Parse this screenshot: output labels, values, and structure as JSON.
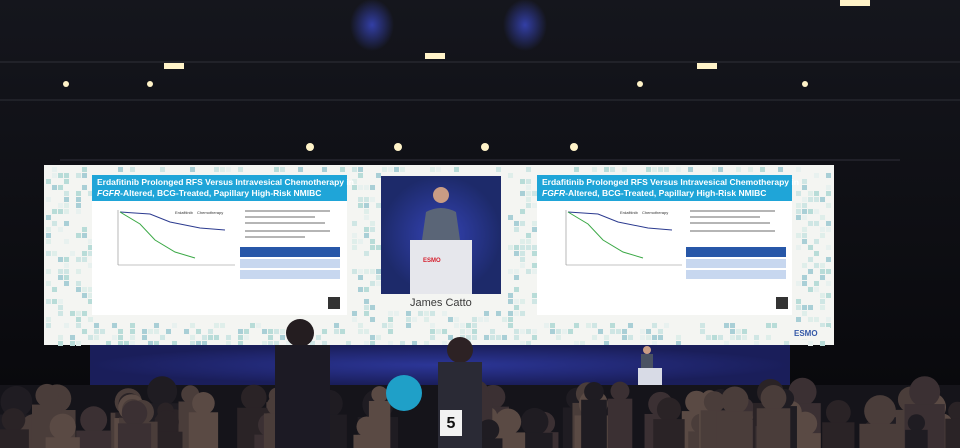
{
  "slides": [
    {
      "title": {
        "line1": "Erdafitinib Prolonged RFS Versus Intravesical Chemotherapy in",
        "italic": "FGFR",
        "rest": "-Altered, BCG-Treated, Papillary High-Risk NMIBC"
      },
      "legend": [
        "Erdafitinib",
        "Chemotherapy"
      ]
    },
    {
      "title": {
        "line1": "Erdafitinib Prolonged RFS Versus Intravesical Chemotherapy in",
        "italic": "FGFR",
        "rest": "-Altered, BCG-Treated, Papillary High-Risk NMIBC"
      },
      "legend": [
        "Erdafitinib",
        "Chemotherapy"
      ]
    }
  ],
  "speaker_name": "James Catto",
  "logo": "ESMO",
  "sign": "5"
}
